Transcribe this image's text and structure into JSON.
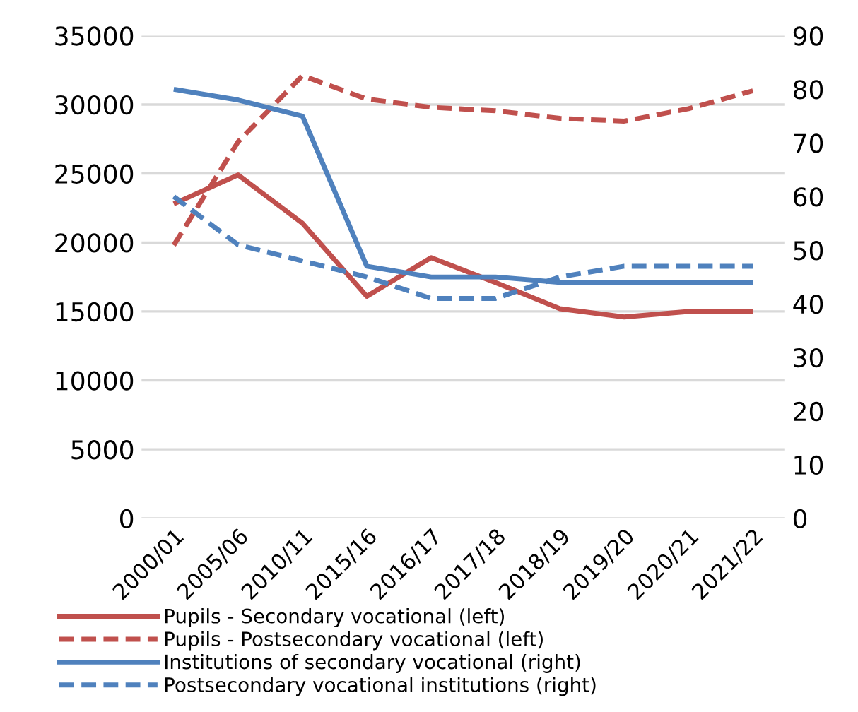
{
  "chart_data": {
    "type": "line",
    "categories": [
      "2000/01",
      "2005/06",
      "2010/11",
      "2015/16",
      "2016/17",
      "2017/18",
      "2018/19",
      "2019/20",
      "2020/21",
      "2021/22"
    ],
    "series": [
      {
        "name": "Pupils - Secondary vocational (left)",
        "color": "#c0504d",
        "line_style": "solid",
        "values": [
          22800,
          24900,
          21400,
          16100,
          18900,
          17100,
          15200,
          14600,
          15000,
          15000
        ]
      },
      {
        "name": "Pupils - Postsecondary vocational (left)",
        "color": "#c0504d",
        "line_style": "dashed",
        "values": [
          19800,
          27300,
          32100,
          30400,
          29800,
          29550,
          29000,
          28800,
          29700,
          31000
        ]
      },
      {
        "name": "Institutions of secondary vocational (right)",
        "color": "#4f81bd",
        "line_style": "solid",
        "axis": "y2",
        "values": [
          80,
          78,
          75,
          47,
          45,
          45,
          44,
          44,
          44,
          44
        ]
      },
      {
        "name": "Postsecondary vocational institutions (right)",
        "color": "#4f81bd",
        "line_style": "dashed",
        "axis": "y2",
        "values": [
          60,
          51,
          48,
          45,
          41,
          41,
          45,
          47,
          47,
          47
        ]
      }
    ],
    "ylim": [
      0,
      35000
    ],
    "yticks": [
      0,
      5000,
      10000,
      15000,
      20000,
      25000,
      30000,
      35000
    ],
    "y2lim": [
      0,
      90
    ],
    "y2ticks": [
      0,
      10,
      20,
      30,
      40,
      50,
      60,
      70,
      80,
      90
    ],
    "grid": "y",
    "legend": "bottom",
    "marker": "none"
  }
}
